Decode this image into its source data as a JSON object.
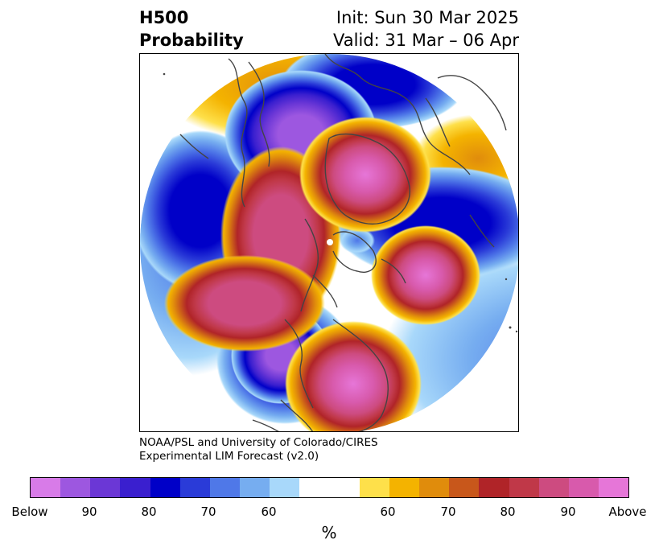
{
  "header": {
    "title_line1": "H500",
    "title_line2": "Probability",
    "init_label": "Init: Sun 30 Mar 2025",
    "valid_label": "Valid: 31 Mar – 06 Apr"
  },
  "credit": {
    "line1": "NOAA/PSL and University of Colorado/CIRES",
    "line2": "Experimental LIM Forecast (v2.0)"
  },
  "colorbar": {
    "colors": [
      "#d87be8",
      "#9d57e0",
      "#6b37d6",
      "#3a1fcf",
      "#0000c8",
      "#2a3bd8",
      "#4f78e8",
      "#76adf0",
      "#a8d8fa",
      "#ffffff",
      "#ffffff",
      "#fee04a",
      "#f4b300",
      "#e08c0c",
      "#c8571b",
      "#b02428",
      "#c03848",
      "#cd4b80",
      "#d85aac",
      "#e676d8"
    ],
    "tick_labels": [
      "Below",
      "90",
      "80",
      "70",
      "60",
      "60",
      "70",
      "80",
      "90",
      "Above"
    ],
    "unit": "%"
  },
  "map": {
    "projection": "north-polar-stereographic",
    "below_normal_color": "#0000c8",
    "above_normal_color": "#e676d8",
    "coastline_color": "#444444"
  }
}
